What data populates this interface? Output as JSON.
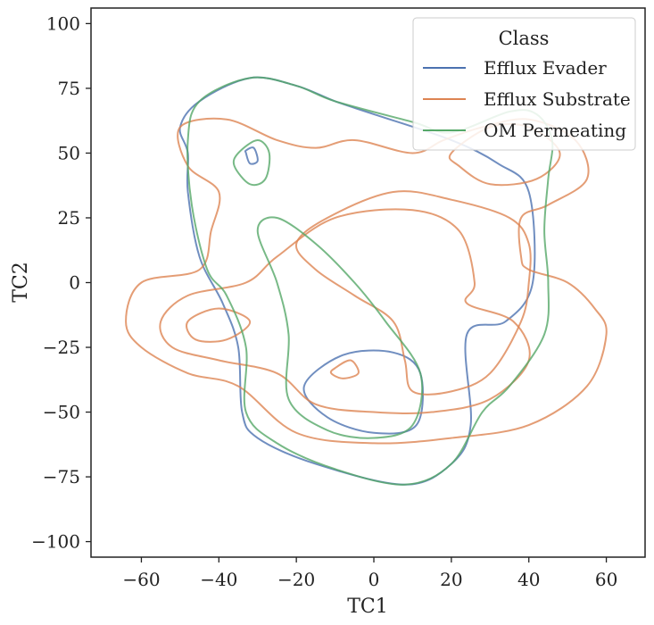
{
  "chart_data": {
    "type": "contour",
    "title": "",
    "xlabel": "TC1",
    "ylabel": "TC2",
    "xlim": [
      -73,
      70
    ],
    "ylim": [
      -106,
      106
    ],
    "xticks": [
      -60,
      -40,
      -20,
      0,
      20,
      40,
      60
    ],
    "yticks": [
      -100,
      -75,
      -50,
      -25,
      0,
      25,
      50,
      75,
      100
    ],
    "xtick_labels": [
      "−60",
      "−40",
      "−20",
      "0",
      "20",
      "40",
      "60"
    ],
    "ytick_labels": [
      "−100",
      "−75",
      "−50",
      "−25",
      "0",
      "25",
      "50",
      "75",
      "100"
    ],
    "grid": false,
    "legend": {
      "title": "Class",
      "placement": "top-right",
      "entries": [
        "Efflux Evader",
        "Efflux Substrate",
        "OM Permeating"
      ]
    },
    "series": [
      {
        "name": "Efflux Evader",
        "color": "#4c72b0",
        "contours": [
          [
            [
              -48,
              50
            ],
            [
              -48,
              35
            ],
            [
              -45,
              10
            ],
            [
              -39,
              -8
            ],
            [
              -35,
              -25
            ],
            [
              -34,
              -50
            ],
            [
              -30,
              -60
            ],
            [
              -15,
              -70
            ],
            [
              8,
              -78
            ],
            [
              20,
              -70
            ],
            [
              25,
              -55
            ],
            [
              24,
              -20
            ],
            [
              34,
              -15
            ],
            [
              41,
              0
            ],
            [
              40,
              35
            ],
            [
              32,
              46
            ],
            [
              20,
              55
            ],
            [
              0,
              65
            ],
            [
              -10,
              70
            ],
            [
              -20,
              76
            ],
            [
              -32,
              79
            ],
            [
              -45,
              70
            ],
            [
              -50,
              60
            ]
          ],
          [
            [
              -33,
              50
            ],
            [
              -32,
              46
            ],
            [
              -30,
              47
            ],
            [
              -31,
              52
            ],
            [
              -33,
              51
            ]
          ],
          [
            [
              -18,
              -40
            ],
            [
              -8,
              -28
            ],
            [
              5,
              -27
            ],
            [
              12,
              -35
            ],
            [
              11,
              -55
            ],
            [
              0,
              -58
            ],
            [
              -12,
              -52
            ]
          ]
        ]
      },
      {
        "name": "Efflux Substrate",
        "color": "#dd8452",
        "contours": [
          [
            [
              -50,
              60
            ],
            [
              -38,
              63
            ],
            [
              -25,
              55
            ],
            [
              -15,
              52
            ],
            [
              -5,
              55
            ],
            [
              10,
              50
            ],
            [
              18,
              55
            ],
            [
              28,
              60
            ],
            [
              40,
              63
            ],
            [
              52,
              55
            ],
            [
              55,
              40
            ],
            [
              45,
              30
            ],
            [
              38,
              25
            ],
            [
              38,
              10
            ],
            [
              40,
              5
            ],
            [
              50,
              0
            ],
            [
              57,
              -10
            ],
            [
              60,
              -20
            ],
            [
              55,
              -40
            ],
            [
              40,
              -55
            ],
            [
              20,
              -60
            ],
            [
              0,
              -62
            ],
            [
              -20,
              -58
            ],
            [
              -35,
              -40
            ],
            [
              -48,
              -35
            ],
            [
              -60,
              -25
            ],
            [
              -64,
              -15
            ],
            [
              -60,
              0
            ],
            [
              -45,
              5
            ],
            [
              -42,
              20
            ],
            [
              -40,
              35
            ],
            [
              -48,
              45
            ]
          ],
          [
            [
              -40,
              -10
            ],
            [
              -32,
              -15
            ],
            [
              -38,
              -22
            ],
            [
              -46,
              -22
            ],
            [
              -48,
              -15
            ]
          ],
          [
            [
              -33,
              0
            ],
            [
              -25,
              10
            ],
            [
              -10,
              25
            ],
            [
              10,
              28
            ],
            [
              22,
              20
            ],
            [
              26,
              0
            ],
            [
              24,
              -8
            ],
            [
              36,
              -15
            ],
            [
              40,
              -30
            ],
            [
              30,
              -45
            ],
            [
              15,
              -50
            ],
            [
              0,
              -50
            ],
            [
              -15,
              -47
            ],
            [
              -25,
              -35
            ],
            [
              -40,
              -30
            ],
            [
              -52,
              -25
            ],
            [
              -55,
              -15
            ],
            [
              -48,
              -5
            ]
          ],
          [
            [
              -10,
              -33
            ],
            [
              -6,
              -30
            ],
            [
              -4,
              -35
            ],
            [
              -8,
              -37
            ],
            [
              -11,
              -35
            ]
          ],
          [
            [
              -12,
              25
            ],
            [
              5,
              35
            ],
            [
              20,
              32
            ],
            [
              35,
              25
            ],
            [
              40,
              15
            ],
            [
              40,
              0
            ],
            [
              38,
              -15
            ],
            [
              30,
              -35
            ],
            [
              20,
              -42
            ],
            [
              10,
              -42
            ],
            [
              8,
              -30
            ],
            [
              5,
              -15
            ],
            [
              -5,
              -5
            ],
            [
              -15,
              5
            ],
            [
              -20,
              15
            ]
          ],
          [
            [
              20,
              50
            ],
            [
              30,
              60
            ],
            [
              40,
              60
            ],
            [
              48,
              50
            ],
            [
              42,
              40
            ],
            [
              30,
              38
            ],
            [
              22,
              45
            ]
          ]
        ]
      },
      {
        "name": "OM Permeating",
        "color": "#55a868",
        "contours": [
          [
            [
              -48,
              55
            ],
            [
              -47,
              30
            ],
            [
              -43,
              5
            ],
            [
              -38,
              -5
            ],
            [
              -33,
              -25
            ],
            [
              -33,
              -50
            ],
            [
              -25,
              -62
            ],
            [
              -10,
              -72
            ],
            [
              8,
              -78
            ],
            [
              20,
              -70
            ],
            [
              28,
              -50
            ],
            [
              35,
              -40
            ],
            [
              44,
              -20
            ],
            [
              45,
              0
            ],
            [
              44,
              20
            ],
            [
              45,
              40
            ],
            [
              46,
              55
            ],
            [
              42,
              65
            ],
            [
              35,
              66
            ],
            [
              20,
              58
            ],
            [
              10,
              62
            ],
            [
              -10,
              70
            ],
            [
              -20,
              76
            ],
            [
              -32,
              79
            ],
            [
              -45,
              70
            ]
          ],
          [
            [
              -35,
              50
            ],
            [
              -30,
              55
            ],
            [
              -27,
              50
            ],
            [
              -28,
              40
            ],
            [
              -32,
              38
            ],
            [
              -36,
              45
            ]
          ],
          [
            [
              -30,
              20
            ],
            [
              -25,
              25
            ],
            [
              -15,
              15
            ],
            [
              -5,
              0
            ],
            [
              3,
              -15
            ],
            [
              12,
              -35
            ],
            [
              10,
              -55
            ],
            [
              0,
              -60
            ],
            [
              -12,
              -57
            ],
            [
              -22,
              -45
            ],
            [
              -22,
              -20
            ],
            [
              -25,
              0
            ]
          ]
        ]
      }
    ]
  }
}
